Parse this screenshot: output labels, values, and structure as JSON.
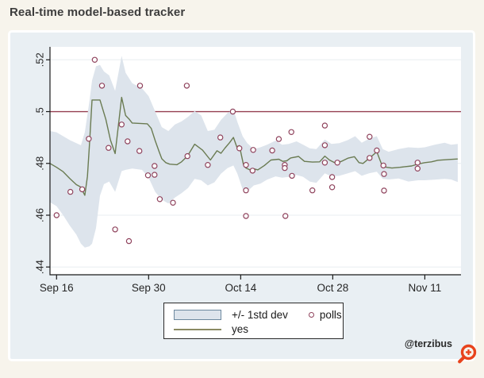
{
  "page": {
    "title": "Real-time model-based tracker",
    "attribution": "@terzibus"
  },
  "legend": {
    "band_label": "+/- 1std dev",
    "polls_label": "polls",
    "line_label": "yes"
  },
  "colors": {
    "page_bg": "#f7f4ec",
    "panel_bg": "#e9eff3",
    "plot_bg": "#ffffff",
    "grid": "#e8edf0",
    "band_fill": "#dde4ec",
    "yes_line": "#6a7b52",
    "polls_marker": "#8f425c",
    "refline": "#943f51",
    "axis": "#1a1a1a",
    "zoom_icon": "#e8431c",
    "title_text": "#3d3d3d"
  },
  "chart_data": {
    "type": "line",
    "title": "Real-time model-based tracker",
    "xlabel": "",
    "ylabel": "",
    "x_axis": {
      "epoch_label": "Sep 16",
      "unit": "days since Sep 16",
      "tick_days": [
        0,
        14,
        28,
        42,
        56
      ],
      "tick_labels": [
        "Sep 16",
        "Sep 30",
        "Oct 14",
        "Oct 28",
        "Nov 11"
      ],
      "xlim_days": [
        -1,
        61.5
      ]
    },
    "y_axis": {
      "tick_values": [
        0.44,
        0.46,
        0.48,
        0.5,
        0.52
      ],
      "tick_labels": [
        ".44",
        ".46",
        ".48",
        ".5",
        ".52"
      ],
      "ylim": [
        0.437,
        0.525
      ]
    },
    "grid": true,
    "legend_position": "bottom-center",
    "refline_y": 0.5,
    "series": [
      {
        "name": "+/- 1std dev",
        "type": "band",
        "x": [
          -1,
          0,
          1,
          2,
          3,
          3.7,
          4.3,
          5,
          5.4,
          6,
          6.6,
          7.2,
          8,
          8.9,
          9.9,
          10.5,
          11.5,
          13,
          14,
          15,
          16,
          17,
          18,
          19,
          20,
          21,
          22,
          23,
          24,
          25,
          26,
          26.9,
          27.5,
          28.3,
          29,
          30,
          31,
          32,
          33.3,
          34.3,
          35.3,
          36.5,
          37.5,
          38.5,
          39.5,
          40.8,
          41.8,
          43,
          44.3,
          45.4,
          46.4,
          47.5,
          48.7,
          49.6,
          50.5,
          52,
          53.5,
          55,
          56,
          57.5,
          59,
          60,
          61
        ],
        "lo": [
          0.465,
          0.4635,
          0.46,
          0.456,
          0.4525,
          0.449,
          0.4475,
          0.448,
          0.449,
          0.455,
          0.4675,
          0.472,
          0.473,
          0.469,
          0.477,
          0.4775,
          0.478,
          0.4775,
          0.4745,
          0.469,
          0.466,
          0.4645,
          0.4668,
          0.4685,
          0.4705,
          0.474,
          0.4735,
          0.4715,
          0.4727,
          0.476,
          0.4782,
          0.4792,
          0.476,
          0.47,
          0.4692,
          0.4715,
          0.4722,
          0.4737,
          0.475,
          0.4745,
          0.4748,
          0.4755,
          0.4748,
          0.473,
          0.4725,
          0.4762,
          0.475,
          0.4752,
          0.4762,
          0.477,
          0.4752,
          0.4762,
          0.4768,
          0.474,
          0.4738,
          0.4742,
          0.473,
          0.4735,
          0.4735,
          0.4737,
          0.474,
          0.4738,
          0.4728
        ],
        "hi": [
          0.4925,
          0.492,
          0.4905,
          0.489,
          0.4878,
          0.487,
          0.492,
          0.504,
          0.512,
          0.5175,
          0.518,
          0.5155,
          0.514,
          0.508,
          0.5215,
          0.515,
          0.511,
          0.509,
          0.506,
          0.5,
          0.494,
          0.4925,
          0.495,
          0.4962,
          0.498,
          0.5002,
          0.4985,
          0.4925,
          0.493,
          0.4968,
          0.4995,
          0.5008,
          0.496,
          0.4905,
          0.4878,
          0.4855,
          0.4862,
          0.4872,
          0.4888,
          0.4872,
          0.4875,
          0.4885,
          0.4872,
          0.4858,
          0.4855,
          0.4892,
          0.4875,
          0.4878,
          0.489,
          0.4905,
          0.488,
          0.4895,
          0.4905,
          0.4855,
          0.4845,
          0.4855,
          0.4862,
          0.486,
          0.4862,
          0.4872,
          0.488,
          0.4872,
          0.4875
        ]
      },
      {
        "name": "yes",
        "type": "line",
        "x": [
          -1,
          0,
          1,
          2,
          3,
          3.6,
          4,
          4.3,
          4.7,
          5,
          5.4,
          6.6,
          7.5,
          8.2,
          8.9,
          9.9,
          10.5,
          11,
          11.5,
          13.8,
          14.4,
          15,
          15.6,
          16,
          16.6,
          17.2,
          18.3,
          19,
          19.9,
          21,
          22.2,
          23.4,
          24.4,
          25,
          25.6,
          26.3,
          26.9,
          27.4,
          27.8,
          28.4,
          28.8,
          29.4,
          30,
          30.6,
          31.6,
          32.6,
          33.8,
          34.4,
          35,
          35.6,
          36.8,
          37.7,
          38.9,
          40,
          40.8,
          41.5,
          42.5,
          43.3,
          44.3,
          45.3,
          46,
          46.6,
          47.6,
          48.7,
          49.5,
          50.2,
          51,
          52.2,
          54,
          54.9,
          56,
          57,
          58,
          59.5,
          61
        ],
        "y": [
          0.48,
          0.4785,
          0.4768,
          0.4742,
          0.4718,
          0.471,
          0.4692,
          0.4677,
          0.475,
          0.487,
          0.5045,
          0.5045,
          0.497,
          0.489,
          0.4838,
          0.5055,
          0.4985,
          0.4972,
          0.4956,
          0.4953,
          0.4935,
          0.4888,
          0.4845,
          0.4818,
          0.4803,
          0.4797,
          0.4795,
          0.4806,
          0.4828,
          0.4874,
          0.4851,
          0.4813,
          0.4849,
          0.4839,
          0.4859,
          0.488,
          0.49,
          0.4864,
          0.4869,
          0.4797,
          0.4782,
          0.4775,
          0.4779,
          0.4775,
          0.4792,
          0.4813,
          0.4816,
          0.4808,
          0.481,
          0.4821,
          0.4827,
          0.4808,
          0.4805,
          0.4806,
          0.4828,
          0.4813,
          0.48,
          0.4808,
          0.482,
          0.4826,
          0.4803,
          0.48,
          0.4821,
          0.4845,
          0.4792,
          0.4785,
          0.4782,
          0.4785,
          0.479,
          0.4797,
          0.4803,
          0.4806,
          0.4812,
          0.4815,
          0.4817
        ]
      },
      {
        "name": "polls",
        "type": "scatter",
        "points": [
          [
            0,
            0.46
          ],
          [
            2.1,
            0.469
          ],
          [
            3.9,
            0.47
          ],
          [
            4.9,
            0.4895
          ],
          [
            5.8,
            0.52
          ],
          [
            6.9,
            0.51
          ],
          [
            7.9,
            0.486
          ],
          [
            8.9,
            0.4545
          ],
          [
            9.9,
            0.495
          ],
          [
            10.8,
            0.4885
          ],
          [
            11,
            0.45
          ],
          [
            12.6,
            0.4848
          ],
          [
            12.7,
            0.51
          ],
          [
            13.9,
            0.4754
          ],
          [
            14.9,
            0.479
          ],
          [
            14.9,
            0.4756
          ],
          [
            15.7,
            0.4662
          ],
          [
            17.7,
            0.4648
          ],
          [
            19.8,
            0.51
          ],
          [
            19.9,
            0.4828
          ],
          [
            23,
            0.4794
          ],
          [
            24.9,
            0.49
          ],
          [
            26.8,
            0.5
          ],
          [
            27.8,
            0.4858
          ],
          [
            28.8,
            0.4794
          ],
          [
            28.8,
            0.4696
          ],
          [
            28.8,
            0.4597
          ],
          [
            29.8,
            0.4772
          ],
          [
            29.9,
            0.4852
          ],
          [
            32.8,
            0.485
          ],
          [
            33.8,
            0.4894
          ],
          [
            34.7,
            0.4794
          ],
          [
            34.7,
            0.4782
          ],
          [
            34.8,
            0.4597
          ],
          [
            35.7,
            0.4921
          ],
          [
            35.8,
            0.4752
          ],
          [
            38.9,
            0.4696
          ],
          [
            40.8,
            0.4946
          ],
          [
            40.8,
            0.487
          ],
          [
            40.8,
            0.4803
          ],
          [
            41.9,
            0.4747
          ],
          [
            41.9,
            0.4708
          ],
          [
            42.7,
            0.4803
          ],
          [
            47.6,
            0.4903
          ],
          [
            47.6,
            0.4821
          ],
          [
            48.7,
            0.485
          ],
          [
            49.7,
            0.4792
          ],
          [
            49.8,
            0.4759
          ],
          [
            49.8,
            0.4695
          ],
          [
            54.9,
            0.4803
          ],
          [
            54.9,
            0.478
          ]
        ]
      }
    ]
  }
}
